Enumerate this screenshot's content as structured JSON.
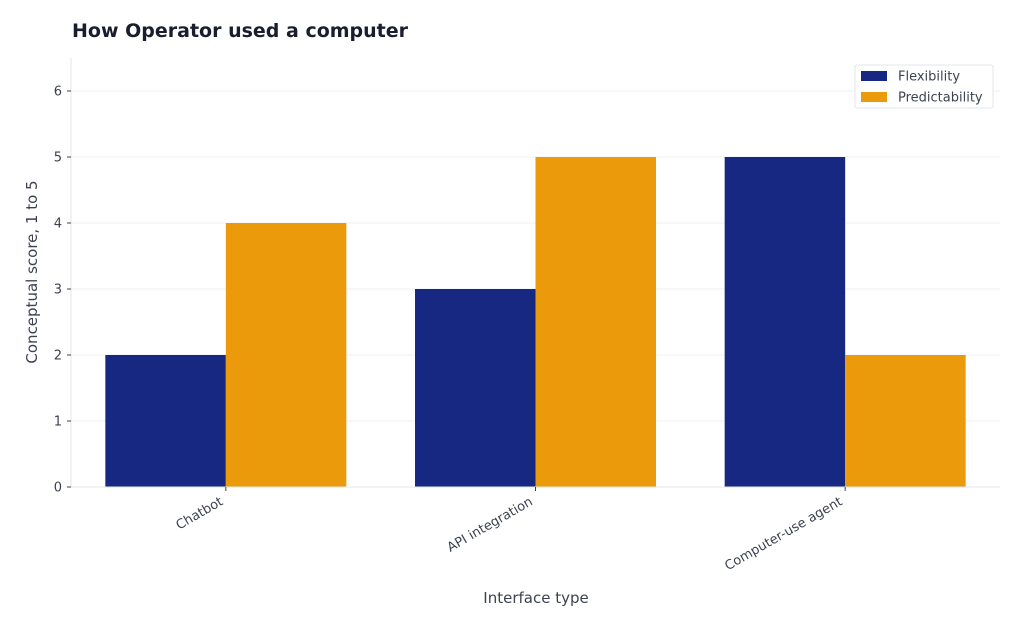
{
  "chart_data": {
    "type": "bar",
    "title": "How Operator used a computer",
    "xlabel": "Interface type",
    "ylabel": "Conceptual score, 1 to 5",
    "categories": [
      "Chatbot",
      "API integration",
      "Computer-use agent"
    ],
    "series": [
      {
        "name": "Flexibility",
        "values": [
          2,
          3,
          5
        ],
        "color": "#162882"
      },
      {
        "name": "Predictability",
        "values": [
          4,
          5,
          2
        ],
        "color": "#ea9a0b"
      }
    ],
    "ylim": [
      0,
      6.5
    ],
    "yticks": [
      0,
      1,
      2,
      3,
      4,
      5,
      6
    ],
    "grid": true,
    "legend_position": "top-right"
  }
}
